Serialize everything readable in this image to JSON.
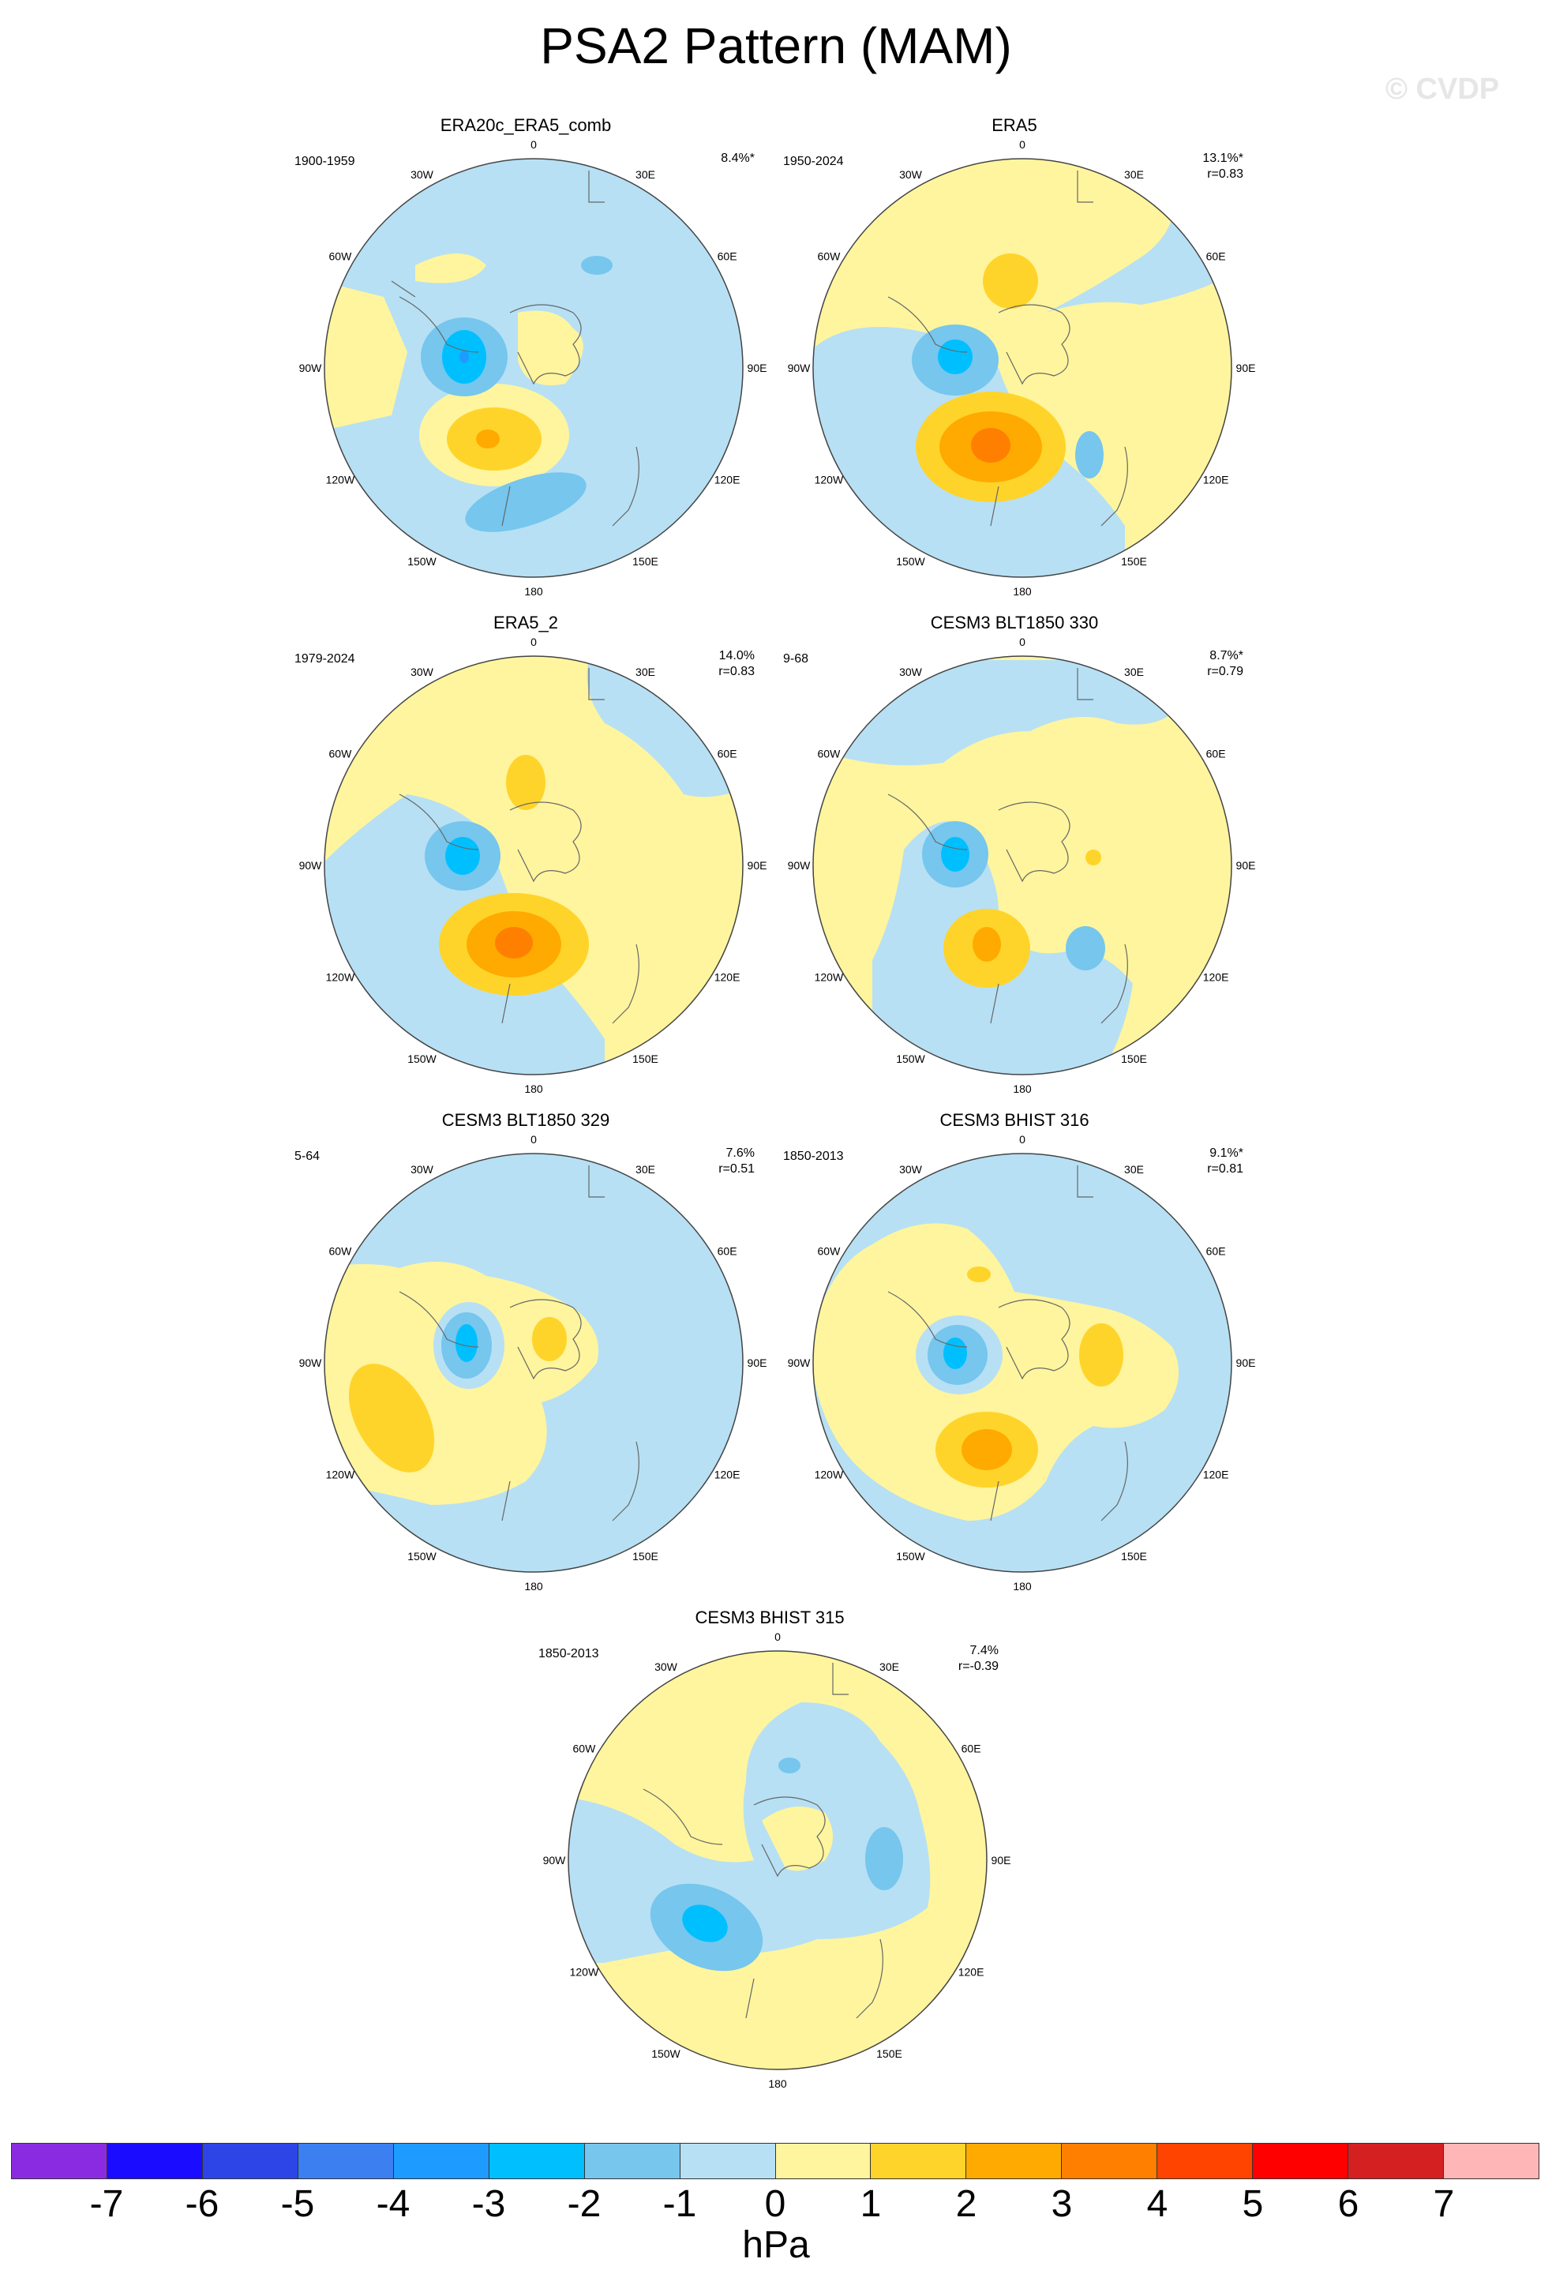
{
  "title": "PSA2 Pattern (MAM)",
  "watermark": "© CVDP",
  "colors": {
    "neg1": "#b7e0f4",
    "neg2": "#76c6ee",
    "neg3": "#00bfff",
    "pos1": "#fff59e",
    "pos2": "#ffd42a",
    "pos3": "#ffaa00",
    "pos4": "#ff7f00"
  },
  "lon_labels": [
    "0",
    "30E",
    "60E",
    "90E",
    "120E",
    "150E",
    "180",
    "150W",
    "120W",
    "90W",
    "60W",
    "30W"
  ],
  "panels": [
    {
      "title": "ERA20c_ERA5_comb",
      "period": "1900-1959",
      "pct": "8.4%*",
      "r": ""
    },
    {
      "title": "ERA5",
      "period": "1950-2024",
      "pct": "13.1%*",
      "r": "r=0.83"
    },
    {
      "title": "ERA5_2",
      "period": "1979-2024",
      "pct": "14.0%",
      "r": "r=0.83"
    },
    {
      "title": "CESM3 BLT1850 330",
      "period": "9-68",
      "pct": "8.7%*",
      "r": "r=0.79"
    },
    {
      "title": "CESM3 BLT1850 329",
      "period": "5-64",
      "pct": "7.6%",
      "r": "r=0.51"
    },
    {
      "title": "CESM3 BHIST 316",
      "period": "1850-2013",
      "pct": "9.1%*",
      "r": "r=0.81"
    },
    {
      "title": "CESM3 BHIST 315",
      "period": "1850-2013",
      "pct": "7.4%",
      "r": "r=-0.39"
    }
  ],
  "colorbar": {
    "colors": [
      "#8a2be2",
      "#1a0dff",
      "#2d45e6",
      "#3b7ff0",
      "#1e9bff",
      "#00bfff",
      "#76c6ee",
      "#b7e0f4",
      "#fff59e",
      "#ffd42a",
      "#ffaa00",
      "#ff7f00",
      "#ff4400",
      "#ff0000",
      "#d42020",
      "#ffb6b6"
    ],
    "labels": [
      "-7",
      "-6",
      "-5",
      "-4",
      "-3",
      "-2",
      "-1",
      "0",
      "1",
      "2",
      "3",
      "4",
      "5",
      "6",
      "7"
    ],
    "unit": "hPa"
  }
}
